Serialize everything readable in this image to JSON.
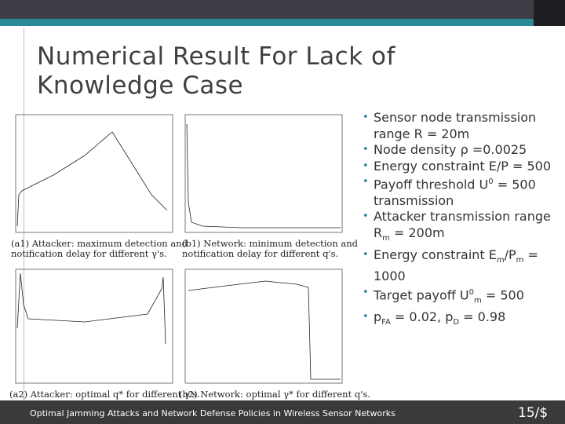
{
  "title": [
    "Numerical Result For Lack of",
    "Knowledge Case"
  ],
  "figures": [
    {
      "caption": [
        "(a1) Attacker: maximum detection and",
        "notification delay for different γ's."
      ]
    },
    {
      "caption": [
        "(b1) Network: minimum detection and",
        "notification delay for different q's."
      ]
    },
    {
      "caption": [
        "(a2) Attacker: optimal q* for different γ's."
      ]
    },
    {
      "caption": [
        "(b2) Network: optimal γ* for different q's."
      ]
    }
  ],
  "bullets": [
    [
      {
        "t": "Sensor node transmission range R = 20m"
      }
    ],
    [
      {
        "t": "Node density ρ =0.0025"
      }
    ],
    [
      {
        "t": "Energy constraint E/P = 500"
      }
    ],
    [
      {
        "t": "Payoff threshold U"
      },
      {
        "sup": "0"
      },
      {
        "t": " = 500 transmission"
      }
    ],
    [
      {
        "t": "Attacker transmission range R"
      },
      {
        "sub": "m"
      },
      {
        "t": " = 200m"
      }
    ],
    [
      {
        "t": "Energy constraint E"
      },
      {
        "sub": "m"
      },
      {
        "t": "/P"
      },
      {
        "sub": "m"
      },
      {
        "t": " = 1000"
      }
    ],
    [
      {
        "t": "Target payoff U"
      },
      {
        "sup": "0"
      },
      {
        "sub": "m"
      },
      {
        "t": " = 500"
      }
    ],
    [
      {
        "t": "p"
      },
      {
        "sub": "FA"
      },
      {
        "t": " = 0.02, p"
      },
      {
        "sub": "D"
      },
      {
        "t": " = 0.98"
      }
    ]
  ],
  "footer": "Optimal Jamming Attacks and Network Defense Policies in Wireless Sensor Networks",
  "page_number": "15/$"
}
